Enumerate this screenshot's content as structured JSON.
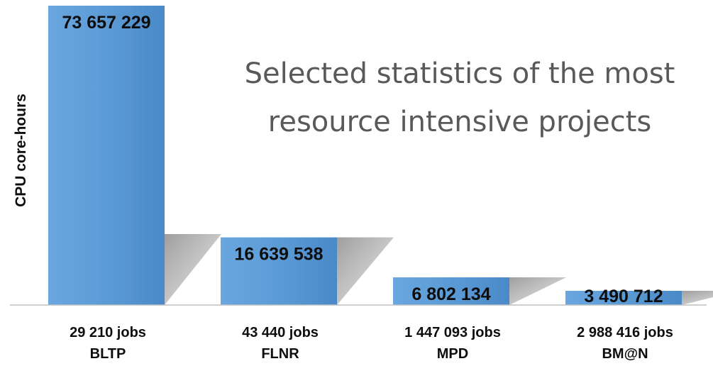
{
  "chart_data": {
    "type": "bar",
    "title": "Selected statistics of the most resource intensive projects",
    "title_lines": [
      "Selected statistics of the most",
      "resource intensive projects"
    ],
    "ylabel": "CPU core-hours",
    "xlabel": "",
    "categories": [
      "BLTP",
      "FLNR",
      "MPD",
      "BM@N"
    ],
    "jobs": [
      "29 210 jobs",
      "43 440 jobs",
      "1 447 093 jobs",
      "2 988 416 jobs"
    ],
    "values": [
      73657229,
      16639538,
      6802134,
      3490712
    ],
    "value_labels": [
      "73 657 229",
      "16 639 538",
      "6 802 134",
      "3 490 712"
    ],
    "bar_color": "#5b9bd5",
    "bar_color_light": "#6fa8dc",
    "shadow_color": "#a6a6a6",
    "grid": false,
    "legend": "none"
  }
}
